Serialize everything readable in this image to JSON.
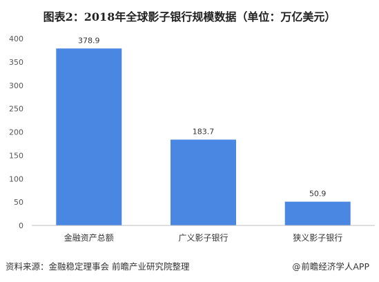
{
  "title": "图表2：2018年全球影子银行规模数据（单位：万亿美元）",
  "footer": {
    "source": "资料来源：金融稳定理事会 前瞻产业研究院整理",
    "credit": "前瞻经济学人APP",
    "at_symbol": "@"
  },
  "colors": {
    "bar": "#4a87e2",
    "axis": "#bfbfbf",
    "label": "#555555"
  },
  "chart_data": {
    "type": "bar",
    "title": "图表2：2018年全球影子银行规模数据（单位：万亿美元）",
    "categories": [
      "金融资产总额",
      "广义影子银行",
      "狭义影子银行"
    ],
    "values": [
      378.9,
      183.7,
      50.9
    ],
    "value_labels": [
      "378.9",
      "183.7",
      "50.9"
    ],
    "xlabel": "",
    "ylabel": "",
    "ylim": [
      0,
      400
    ],
    "yticks": [
      0,
      50,
      100,
      150,
      200,
      250,
      300,
      350,
      400
    ],
    "grid": false,
    "legend": "none"
  }
}
